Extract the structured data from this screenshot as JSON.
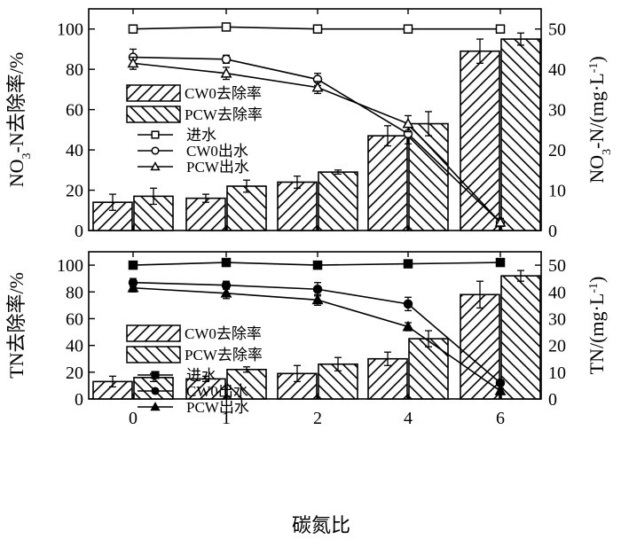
{
  "figure": {
    "xlabel": "碳氮比",
    "categories": [
      "0",
      "1",
      "2",
      "4",
      "6"
    ]
  },
  "chart_data": [
    {
      "type": "bar",
      "panel": "top",
      "categories": [
        "0",
        "1",
        "2",
        "4",
        "6"
      ],
      "ylabel": "NO3--N去除率/%",
      "ylabel_parts": {
        "main": "NO",
        "sub": "3",
        "rest": "-N去除率/%"
      },
      "y2label": "NO3--N/(mg·L-1)",
      "y2label_parts": {
        "main": "NO",
        "sub": "3",
        "mid": "-N/(mg·L",
        "sup": "-1",
        "end": ")"
      },
      "ylim": [
        0,
        110
      ],
      "y2lim": [
        0,
        55
      ],
      "yticks": [
        0,
        20,
        40,
        60,
        80,
        100
      ],
      "y2ticks": [
        0,
        10,
        20,
        30,
        40,
        50
      ],
      "legend_position": "left-middle",
      "series": [
        {
          "name": "CW0去除率",
          "kind": "bar",
          "axis": "left",
          "hatch": "forward",
          "values": [
            14,
            16,
            24,
            47,
            89
          ],
          "errors": [
            4,
            2,
            3,
            5,
            6
          ]
        },
        {
          "name": "PCW去除率",
          "kind": "bar",
          "axis": "left",
          "hatch": "backward",
          "values": [
            17,
            22,
            29,
            53,
            95
          ],
          "errors": [
            4,
            3,
            1,
            6,
            3
          ]
        },
        {
          "name": "进水",
          "kind": "line",
          "axis": "right",
          "marker": "square-open",
          "values": [
            50,
            50.5,
            50,
            50,
            50
          ],
          "errors": [
            0.5,
            0.5,
            0.5,
            1,
            0.5
          ]
        },
        {
          "name": "CW0出水",
          "kind": "line",
          "axis": "right",
          "marker": "circle-open",
          "values": [
            43,
            42.5,
            37.5,
            24,
            2
          ],
          "errors": [
            2,
            1,
            1.5,
            2.5,
            1
          ]
        },
        {
          "name": "PCW出水",
          "kind": "line",
          "axis": "right",
          "marker": "triangle-open",
          "values": [
            41.5,
            39,
            35.5,
            26.5,
            2
          ],
          "errors": [
            1.5,
            1.5,
            1.5,
            2,
            1
          ]
        }
      ]
    },
    {
      "type": "bar",
      "panel": "bottom",
      "categories": [
        "0",
        "1",
        "2",
        "4",
        "6"
      ],
      "ylabel": "TN去除率/%",
      "y2label": "TN/(mg·L-1)",
      "y2label_parts": {
        "main": "TN/(mg·L",
        "sup": "-1",
        "end": ")"
      },
      "ylim": [
        0,
        110
      ],
      "y2lim": [
        0,
        55
      ],
      "yticks": [
        0,
        20,
        40,
        60,
        80,
        100
      ],
      "y2ticks": [
        0,
        10,
        20,
        30,
        40,
        50
      ],
      "legend_position": "left-middle",
      "series": [
        {
          "name": "CW0去除率",
          "kind": "bar",
          "axis": "left",
          "hatch": "forward",
          "values": [
            13,
            15,
            19,
            30,
            78
          ],
          "errors": [
            4,
            2,
            6,
            5,
            10
          ]
        },
        {
          "name": "PCW去除率",
          "kind": "bar",
          "axis": "left",
          "hatch": "backward",
          "values": [
            16,
            22,
            26,
            45,
            92
          ],
          "errors": [
            3,
            2,
            5,
            6,
            4
          ]
        },
        {
          "name": "进水",
          "kind": "line",
          "axis": "right",
          "marker": "square-filled",
          "values": [
            50,
            51,
            50,
            50.5,
            51
          ],
          "errors": [
            0.5,
            0.5,
            0.5,
            1,
            0.5
          ]
        },
        {
          "name": "CW0出水",
          "kind": "line",
          "axis": "right",
          "marker": "circle-filled",
          "values": [
            43.5,
            42.5,
            41,
            35.5,
            6
          ],
          "errors": [
            1.5,
            1.5,
            2.5,
            2.5,
            1
          ]
        },
        {
          "name": "PCW出水",
          "kind": "line",
          "axis": "right",
          "marker": "triangle-filled",
          "values": [
            41.5,
            39.5,
            37,
            27,
            3
          ],
          "errors": [
            1.5,
            2,
            2,
            1.5,
            1
          ]
        }
      ]
    }
  ]
}
